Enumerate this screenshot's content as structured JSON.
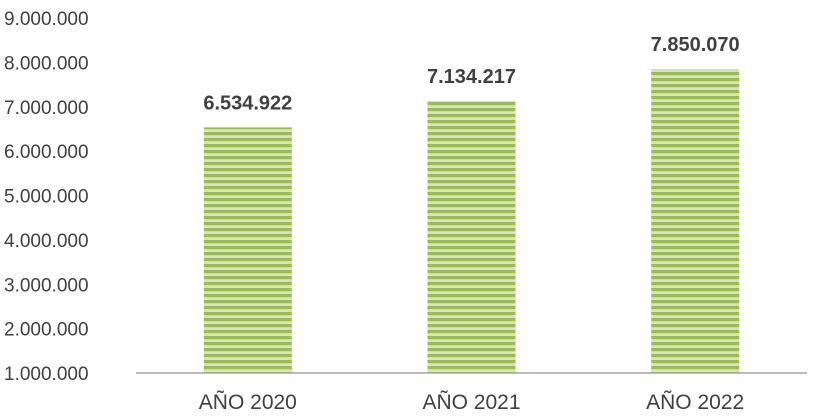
{
  "chart_data": {
    "type": "bar",
    "categories": [
      "AÑO 2020",
      "AÑO 2021",
      "AÑO 2022"
    ],
    "values": [
      6534922,
      7134217,
      7850070
    ],
    "data_labels": [
      "6.534.922",
      "7.134.217",
      "7.850.070"
    ],
    "ylim": [
      1000000,
      9000000
    ],
    "y_ticks": [
      {
        "value": 1000000,
        "label": "1.000.000"
      },
      {
        "value": 2000000,
        "label": "2.000.000"
      },
      {
        "value": 3000000,
        "label": "3.000.000"
      },
      {
        "value": 4000000,
        "label": "4.000.000"
      },
      {
        "value": 5000000,
        "label": "5.000.000"
      },
      {
        "value": 6000000,
        "label": "6.000.000"
      },
      {
        "value": 7000000,
        "label": "7.000.000"
      },
      {
        "value": 8000000,
        "label": "8.000.000"
      },
      {
        "value": 9000000,
        "label": "9.000.000"
      }
    ],
    "grid": false,
    "legend": "none",
    "bar_color": "#9bbb59",
    "bar_stripe_color": "#d7e4bd",
    "axis_color": "#a6a6a6",
    "text_color": "#404040"
  }
}
